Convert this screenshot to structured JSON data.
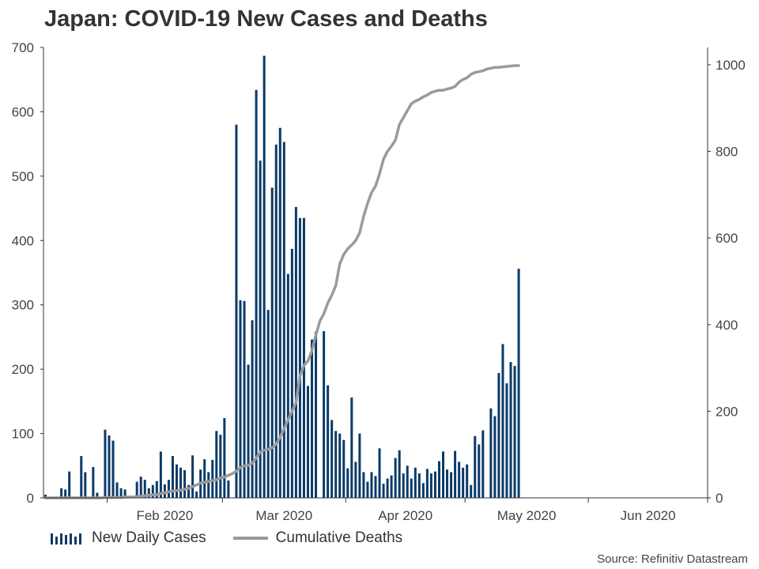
{
  "title": "Japan: COVID-19 New Cases and Deaths",
  "source": "Source: Refinitiv Datastream",
  "legend": {
    "bars": "New Daily Cases",
    "line": "Cumulative Deaths"
  },
  "colors": {
    "bars": "#0b3a68",
    "line": "#9a9a9a",
    "axis": "#333333",
    "text": "#444444"
  },
  "chart_data": {
    "type": "bar",
    "title": "Japan: COVID-19 New Cases and Deaths",
    "x_tick_labels": [
      "Feb 2020",
      "Mar 2020",
      "Apr 2020",
      "May 2020",
      "Jun 2020"
    ],
    "y_left": {
      "ticks": [
        0,
        100,
        200,
        300,
        400,
        500,
        600,
        700
      ],
      "lim": [
        0,
        700
      ]
    },
    "y_right": {
      "ticks": [
        0,
        200,
        400,
        600,
        800,
        1000
      ],
      "lim": [
        0,
        1040
      ]
    },
    "x_range": [
      "2020-01-16",
      "2020-06-30"
    ],
    "legend_position": "bottom-left",
    "grid": false,
    "series": [
      {
        "name": "New Daily Cases",
        "type": "bar",
        "axis": "left",
        "start_date": "2020-01-16",
        "values": [
          5,
          0,
          0,
          0,
          15,
          13,
          41,
          0,
          0,
          65,
          40,
          0,
          48,
          8,
          0,
          106,
          97,
          89,
          24,
          15,
          13,
          0,
          0,
          25,
          33,
          28,
          15,
          20,
          26,
          72,
          21,
          28,
          65,
          52,
          47,
          43,
          20,
          66,
          10,
          44,
          60,
          40,
          59,
          104,
          98,
          124,
          27,
          0,
          580,
          307,
          306,
          207,
          276,
          634,
          524,
          687,
          292,
          482,
          549,
          575,
          553,
          348,
          387,
          452,
          435,
          435,
          174,
          246,
          258,
          0,
          259,
          175,
          121,
          104,
          100,
          90,
          46,
          156,
          56,
          100,
          40,
          25,
          40,
          34,
          77,
          22,
          30,
          35,
          62,
          74,
          38,
          50,
          30,
          47,
          38,
          23,
          45,
          38,
          41,
          57,
          72,
          44,
          40,
          73,
          56,
          47,
          52,
          20,
          96,
          83,
          105,
          0,
          139,
          127,
          194,
          239,
          178,
          211,
          205,
          356
        ]
      },
      {
        "name": "Cumulative Deaths",
        "type": "line",
        "axis": "right",
        "start_date": "2020-01-16",
        "values": [
          0,
          0,
          0,
          0,
          0,
          0,
          0,
          0,
          0,
          0,
          0,
          0,
          0,
          0,
          0,
          1,
          1,
          1,
          1,
          1,
          2,
          2,
          2,
          3,
          4,
          5,
          6,
          7,
          8,
          10,
          12,
          14,
          16,
          17,
          18,
          20,
          22,
          26,
          30,
          34,
          36,
          38,
          40,
          42,
          46,
          48,
          52,
          56,
          62,
          70,
          74,
          75,
          80,
          92,
          106,
          110,
          112,
          116,
          124,
          140,
          160,
          180,
          200,
          220,
          282,
          306,
          316,
          340,
          376,
          408,
          425,
          450,
          468,
          490,
          540,
          562,
          575,
          584,
          594,
          612,
          650,
          680,
          705,
          720,
          748,
          782,
          800,
          812,
          826,
          862,
          878,
          894,
          910,
          916,
          920,
          926,
          930,
          936,
          939,
          941,
          941,
          944,
          946,
          950,
          960,
          966,
          970,
          978,
          982,
          984,
          986,
          990,
          992,
          994,
          994,
          995,
          996,
          997,
          998,
          998
        ]
      }
    ]
  }
}
